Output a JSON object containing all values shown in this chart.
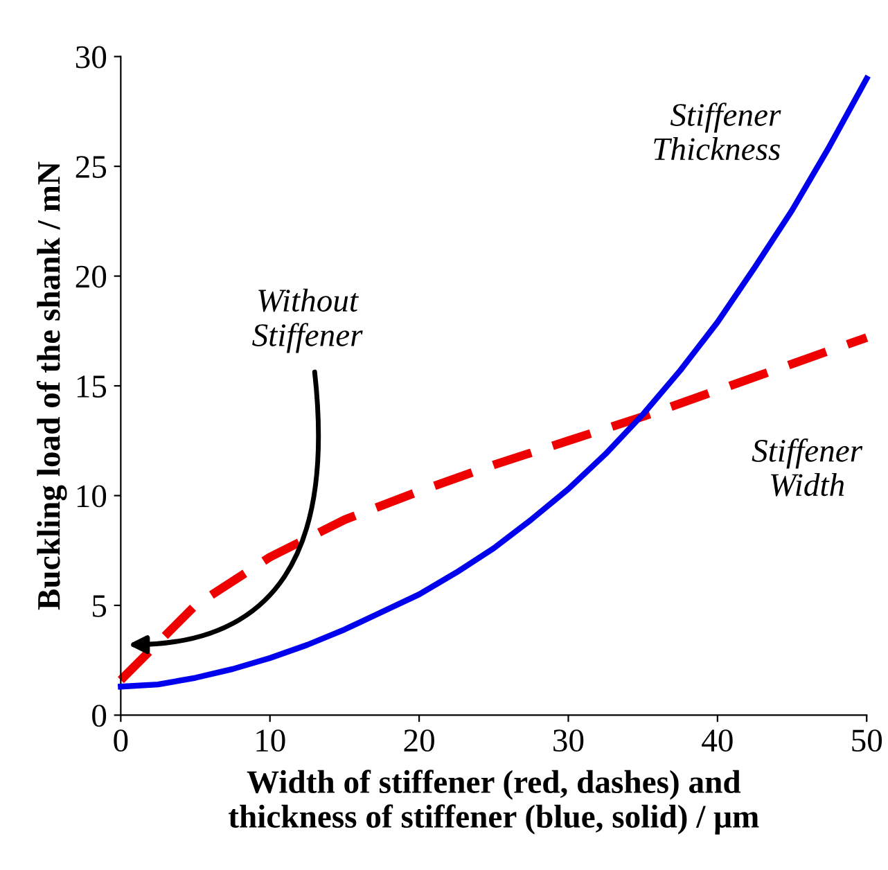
{
  "chart_data": {
    "type": "line",
    "xlabel": "Width of stiffener (red, dashes) and\nthickness of stiffener (blue, solid) / μm",
    "ylabel": "Buckling load of the shank / mN",
    "xlim": [
      0,
      50
    ],
    "ylim": [
      0,
      30
    ],
    "xticks": [
      0,
      10,
      20,
      30,
      40,
      50
    ],
    "yticks": [
      0,
      5,
      10,
      15,
      20,
      25,
      30
    ],
    "grid": false,
    "legend": false,
    "series": [
      {
        "name": "Stiffener Thickness",
        "color": "#0000ee",
        "line_style": "solid",
        "x": [
          0,
          2.5,
          5,
          7.5,
          10,
          12.5,
          15,
          17.5,
          20,
          22.5,
          25,
          27.5,
          30,
          32.5,
          35,
          37.5,
          40,
          42.5,
          45,
          47.5,
          50
        ],
        "values": [
          1.3,
          1.4,
          1.7,
          2.1,
          2.6,
          3.2,
          3.9,
          4.7,
          5.5,
          6.5,
          7.6,
          8.9,
          10.3,
          11.9,
          13.7,
          15.7,
          17.9,
          20.4,
          23.0,
          25.9,
          29.0
        ]
      },
      {
        "name": "Stiffener Width",
        "color": "#ee0000",
        "line_style": "dashed",
        "x": [
          0,
          5,
          10,
          15,
          20,
          25,
          30,
          35,
          40,
          45,
          50
        ],
        "values": [
          1.6,
          5.0,
          7.2,
          8.9,
          10.2,
          11.4,
          12.5,
          13.6,
          14.8,
          16.0,
          17.2
        ]
      }
    ],
    "annotations": [
      "Without\nStiffener"
    ]
  }
}
